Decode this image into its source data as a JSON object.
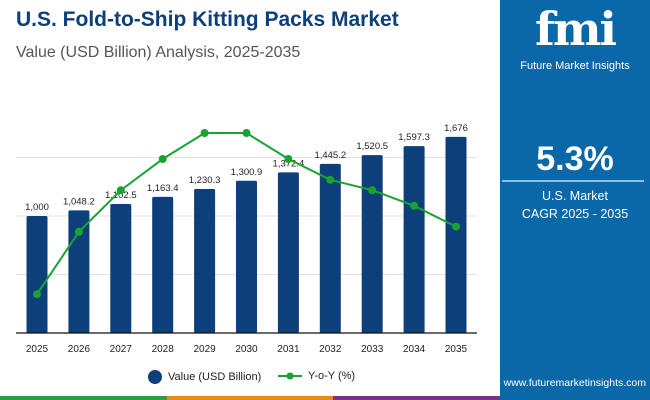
{
  "header": {
    "title": "U.S. Fold-to-Ship Kitting Packs Market",
    "subtitle": "Value (USD Billion) Analysis, 2025-2035"
  },
  "sidebar": {
    "logo_mark": "fmi",
    "logo_text": "Future Market Insights",
    "cagr_value": "5.3%",
    "cagr_label1": "U.S. Market",
    "cagr_label2": "CAGR 2025 - 2035",
    "website": "www.futuremarketinsights.com"
  },
  "colors": {
    "bar": "#0d3f7a",
    "line": "#1aa332",
    "sidebar": "#0b68a8",
    "strip": [
      "#2e9f3e",
      "#e88a1a",
      "#7a2e8e"
    ]
  },
  "chart_data": {
    "type": "bar",
    "categories": [
      "2025",
      "2026",
      "2027",
      "2028",
      "2029",
      "2030",
      "2031",
      "2032",
      "2033",
      "2034",
      "2035"
    ],
    "series": [
      {
        "name": "Value (USD Billion)",
        "type": "bar",
        "values": [
          1000,
          1048.2,
          1102.5,
          1163.4,
          1230.3,
          1300.9,
          1372.4,
          1445.2,
          1520.5,
          1597.3,
          1676
        ],
        "labels": [
          "1,000",
          "1,048.2",
          "1,102.5",
          "1,163.4",
          "1,230.3",
          "1,300.9",
          "1,372.4",
          "1,445.2",
          "1,520.5",
          "1,597.3",
          "1,676"
        ]
      },
      {
        "name": "Y-o-Y (%)",
        "type": "line",
        "values": [
          4.2,
          4.8,
          5.2,
          5.5,
          5.75,
          5.75,
          5.5,
          5.3,
          5.2,
          5.05,
          4.85
        ]
      }
    ],
    "ylim": [
      0,
      1800
    ],
    "grid": true,
    "legend": "bottom"
  }
}
